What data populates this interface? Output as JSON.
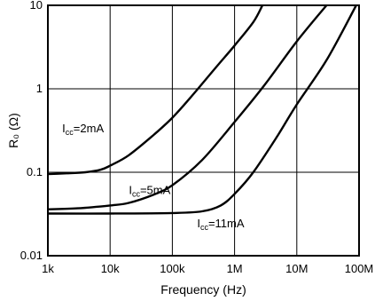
{
  "chart_data": {
    "type": "line",
    "title": "",
    "xlabel": "Frequency (Hz)",
    "ylabel": "R₀ (Ω)",
    "xscale": "log",
    "yscale": "log",
    "xlim": [
      1000,
      100000000
    ],
    "ylim": [
      0.01,
      10
    ],
    "grid": true,
    "legend": "none",
    "x_ticks": [
      {
        "value": 1000,
        "label": "1k"
      },
      {
        "value": 10000,
        "label": "10k"
      },
      {
        "value": 100000,
        "label": "100k"
      },
      {
        "value": 1000000,
        "label": "1M"
      },
      {
        "value": 10000000,
        "label": "10M"
      },
      {
        "value": 100000000,
        "label": "100M"
      }
    ],
    "y_ticks": [
      {
        "value": 10,
        "label": "10"
      },
      {
        "value": 1,
        "label": "1"
      },
      {
        "value": 0.1,
        "label": "0.1"
      },
      {
        "value": 0.01,
        "label": "0.01"
      }
    ],
    "series": [
      {
        "annotation": {
          "main": "I",
          "sub": "cc",
          "rest": "=2mA"
        },
        "annotation_at": [
          1700,
          0.3
        ],
        "color": "#000000",
        "points": [
          [
            1000,
            0.095
          ],
          [
            2000,
            0.097
          ],
          [
            4000,
            0.1
          ],
          [
            7000,
            0.107
          ],
          [
            10000,
            0.12
          ],
          [
            20000,
            0.16
          ],
          [
            50000,
            0.28
          ],
          [
            100000,
            0.45
          ],
          [
            200000,
            0.8
          ],
          [
            500000,
            1.8
          ],
          [
            1000000,
            3.3
          ],
          [
            2000000,
            6.3
          ],
          [
            2800000,
            10
          ]
        ]
      },
      {
        "annotation": {
          "main": "I",
          "sub": "cc",
          "rest": "=5mA"
        },
        "annotation_at": [
          20000,
          0.055
        ],
        "color": "#000000",
        "points": [
          [
            1000,
            0.036
          ],
          [
            3000,
            0.037
          ],
          [
            10000,
            0.04
          ],
          [
            20000,
            0.043
          ],
          [
            50000,
            0.054
          ],
          [
            100000,
            0.07
          ],
          [
            300000,
            0.14
          ],
          [
            1000000,
            0.4
          ],
          [
            3000000,
            1.1
          ],
          [
            10000000,
            3.7
          ],
          [
            30000000,
            10
          ]
        ]
      },
      {
        "annotation": {
          "main": "I",
          "sub": "cc",
          "rest": "=11mA"
        },
        "annotation_at": [
          250000,
          0.022
        ],
        "color": "#000000",
        "points": [
          [
            1000,
            0.032
          ],
          [
            10000,
            0.032
          ],
          [
            100000,
            0.0325
          ],
          [
            300000,
            0.034
          ],
          [
            600000,
            0.04
          ],
          [
            1000000,
            0.055
          ],
          [
            2000000,
            0.1
          ],
          [
            5000000,
            0.28
          ],
          [
            10000000,
            0.65
          ],
          [
            30000000,
            2.2
          ],
          [
            90000000,
            10
          ]
        ]
      }
    ]
  }
}
